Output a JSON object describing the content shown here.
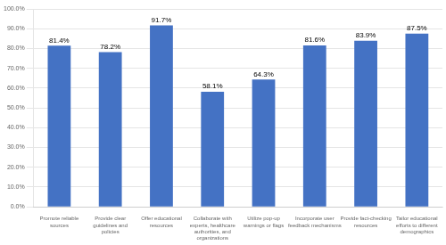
{
  "chart_data": {
    "type": "bar",
    "categories": [
      "Promote reliable\nsources",
      "Provide clear\nguidelines and\npolicies",
      "Offer educational\nresources",
      "Collaborate with\nexperts, healthcare\nauthorities, and\norganizations",
      "Utilize pop-up\nwarnings or flags",
      "Incorporate user\nfeedback mechanisms",
      "Provide fact-checking\nresources",
      "Tailor educational\nefforts to different\ndemographics"
    ],
    "values": [
      81.4,
      78.2,
      91.7,
      58.1,
      64.3,
      81.6,
      83.9,
      87.5
    ],
    "value_labels": [
      "81.4%",
      "78.2%",
      "91.7%",
      "58.1%",
      "64.3%",
      "81.6%",
      "83.9%",
      "87.5%"
    ],
    "data_labels": true,
    "color": "#4472C4",
    "ylim": [
      0,
      100
    ],
    "yticks": [
      {
        "value": 0,
        "label": "0.0%"
      },
      {
        "value": 10,
        "label": "10.0%"
      },
      {
        "value": 20,
        "label": "20.0%"
      },
      {
        "value": 30,
        "label": "30.0%"
      },
      {
        "value": 40,
        "label": "40.0%"
      },
      {
        "value": 50,
        "label": "50.0%"
      },
      {
        "value": 60,
        "label": "60.0%"
      },
      {
        "value": 70,
        "label": "70.0%"
      },
      {
        "value": 80,
        "label": "80.0%"
      },
      {
        "value": 90,
        "label": "90.0%"
      },
      {
        "value": 100,
        "label": "100.0%"
      }
    ],
    "grid": true
  }
}
